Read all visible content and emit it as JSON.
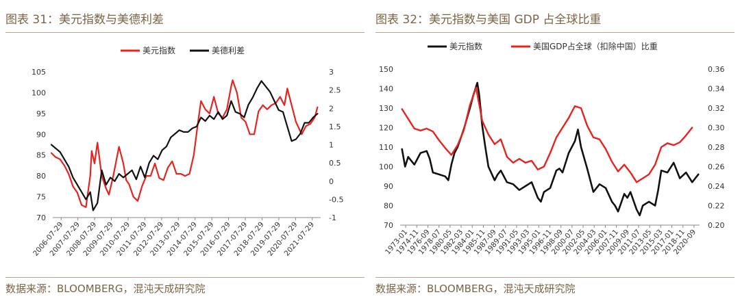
{
  "panels": [
    {
      "title": "图表 31：美元指数与美德利差",
      "source": "数据来源：BLOOMBERG，混沌天成研究院"
    },
    {
      "title": "图表 32：美元指数与美国 GDP 占全球比重",
      "source": "数据来源：BLOOMBERG，混沌天成研究院"
    }
  ],
  "chart_data": [
    {
      "type": "line",
      "title": "图表 31：美元指数与美德利差",
      "legend_position": "top-center",
      "grid": false,
      "y_left": {
        "ylim": [
          70,
          105
        ],
        "ticks": [
          "70",
          "75",
          "80",
          "85",
          "90",
          "95",
          "100",
          "105"
        ]
      },
      "y_right": {
        "ylim": [
          -1,
          3
        ],
        "ticks": [
          "-1",
          "-0.5",
          "0",
          "0.5",
          "1",
          "1.5",
          "2",
          "2.5",
          "3"
        ]
      },
      "x_ticks": [
        "2006-07-29",
        "2007-07-29",
        "2008-07-29",
        "2009-07-29",
        "2010-07-29",
        "2011-07-29",
        "2012-07-29",
        "2013-07-29",
        "2014-07-29",
        "2015-07-29",
        "2016-07-29",
        "2017-07-29",
        "2018-07-29",
        "2019-07-29",
        "2020-07-29",
        "2021-07-29"
      ],
      "series": [
        {
          "name": "美元指数",
          "axis": "left",
          "color": "#e8221f",
          "x": [
            "2006-07",
            "2006-10",
            "2007-01",
            "2007-04",
            "2007-07",
            "2007-10",
            "2008-01",
            "2008-04",
            "2008-07",
            "2008-10",
            "2008-11",
            "2009-01",
            "2009-03",
            "2009-06",
            "2009-09",
            "2009-11",
            "2010-02",
            "2010-06",
            "2010-09",
            "2010-11",
            "2011-01",
            "2011-04",
            "2011-07",
            "2011-10",
            "2012-01",
            "2012-04",
            "2012-07",
            "2012-10",
            "2013-01",
            "2013-04",
            "2013-07",
            "2013-10",
            "2014-01",
            "2014-04",
            "2014-07",
            "2014-10",
            "2015-01",
            "2015-03",
            "2015-06",
            "2015-09",
            "2015-12",
            "2016-03",
            "2016-06",
            "2016-09",
            "2016-12",
            "2017-01",
            "2017-04",
            "2017-07",
            "2017-10",
            "2018-01",
            "2018-04",
            "2018-07",
            "2018-10",
            "2019-01",
            "2019-04",
            "2019-07",
            "2019-10",
            "2020-01",
            "2020-03",
            "2020-06",
            "2020-09",
            "2021-01",
            "2021-04",
            "2021-07",
            "2021-10",
            "2021-12"
          ],
          "values": [
            85.5,
            84.5,
            84,
            82.5,
            80.5,
            77.5,
            76,
            73,
            72.5,
            80,
            86,
            83,
            88,
            80,
            77,
            75.5,
            80,
            87,
            83,
            79,
            78,
            75,
            74,
            77.5,
            80,
            80,
            83,
            79.5,
            79,
            82,
            83.5,
            80.5,
            80.5,
            80,
            80.5,
            85,
            93,
            98,
            96,
            95,
            99,
            95,
            94,
            96,
            101.5,
            103,
            100,
            94,
            93,
            90,
            90,
            95.5,
            97,
            96,
            97,
            97.5,
            99,
            97,
            101,
            97,
            93,
            90,
            92,
            92.5,
            94,
            96.5
          ]
        },
        {
          "name": "美德利差",
          "axis": "right",
          "color": "#111111",
          "x": [
            "2006-07",
            "2006-10",
            "2007-01",
            "2007-04",
            "2007-07",
            "2007-10",
            "2008-01",
            "2008-04",
            "2008-07",
            "2008-10",
            "2008-12",
            "2009-03",
            "2009-06",
            "2009-09",
            "2009-12",
            "2010-03",
            "2010-06",
            "2010-09",
            "2010-12",
            "2011-03",
            "2011-06",
            "2011-09",
            "2011-12",
            "2012-03",
            "2012-06",
            "2012-09",
            "2012-12",
            "2013-03",
            "2013-06",
            "2013-09",
            "2013-12",
            "2014-03",
            "2014-06",
            "2014-09",
            "2014-12",
            "2015-03",
            "2015-06",
            "2015-09",
            "2015-12",
            "2016-03",
            "2016-06",
            "2016-09",
            "2016-12",
            "2017-03",
            "2017-06",
            "2017-09",
            "2017-12",
            "2018-03",
            "2018-06",
            "2018-09",
            "2018-12",
            "2019-03",
            "2019-06",
            "2019-09",
            "2019-12",
            "2020-03",
            "2020-06",
            "2020-09",
            "2020-12",
            "2021-03",
            "2021-06",
            "2021-09",
            "2021-12"
          ],
          "values": [
            1.0,
            0.9,
            0.8,
            0.6,
            0.4,
            0.1,
            -0.1,
            -0.3,
            -0.5,
            -0.3,
            -0.8,
            -0.6,
            0.3,
            -0.1,
            0.1,
            0.0,
            0.2,
            0.1,
            0.2,
            0.3,
            0.05,
            0.4,
            0.1,
            0.5,
            0.7,
            0.6,
            0.85,
            0.95,
            1.2,
            1.3,
            1.4,
            1.35,
            1.35,
            1.45,
            1.5,
            1.75,
            1.65,
            1.8,
            1.7,
            1.9,
            1.7,
            1.8,
            2.2,
            1.9,
            1.85,
            1.75,
            2.1,
            2.3,
            2.55,
            2.75,
            2.6,
            2.45,
            2.2,
            1.95,
            1.9,
            1.5,
            1.1,
            1.15,
            1.3,
            1.6,
            1.6,
            1.75,
            1.85
          ]
        }
      ]
    },
    {
      "type": "line",
      "title": "图表 32：美元指数与美国 GDP 占全球比重",
      "legend_position": "top-center",
      "grid": false,
      "y_left": {
        "ylim": [
          70,
          150
        ],
        "ticks": [
          "70",
          "80",
          "90",
          "100",
          "110",
          "120",
          "130",
          "140",
          "150"
        ]
      },
      "y_right": {
        "ylim": [
          0.2,
          0.36
        ],
        "ticks": [
          "0.20",
          "0.22",
          "0.24",
          "0.26",
          "0.28",
          "0.30",
          "0.32",
          "0.34",
          "0.36"
        ]
      },
      "x_ticks": [
        "1973-01",
        "1974-11",
        "1976-09",
        "1978-07",
        "1980-05",
        "1982-03",
        "1984-01",
        "1985-11",
        "1987-09",
        "1989-07",
        "1991-05",
        "1993-03",
        "1995-01",
        "1996-11",
        "1998-09",
        "2000-07",
        "2002-05",
        "2004-03",
        "2006-01",
        "2007-11",
        "2009-09",
        "2011-07",
        "2013-05",
        "2015-03",
        "2017-01",
        "2018-11",
        "2020-09"
      ],
      "series": [
        {
          "name": "美元指数",
          "axis": "left",
          "color": "#111111",
          "x": [
            1973,
            1973.5,
            1974,
            1975,
            1976,
            1977,
            1977.5,
            1978,
            1979,
            1980,
            1980.5,
            1981,
            1981.5,
            1982,
            1983,
            1984,
            1984.5,
            1985.2,
            1985.5,
            1986,
            1986.5,
            1987,
            1988,
            1988.5,
            1989,
            1990,
            1991,
            1992,
            1993,
            1994,
            1995,
            1995.5,
            1996,
            1997,
            1998,
            1998.5,
            1999,
            2000,
            2001,
            2001.5,
            2002,
            2003,
            2004,
            2005,
            2006,
            2007,
            2007.5,
            2008,
            2009,
            2009.5,
            2010,
            2011,
            2011.5,
            2012,
            2013,
            2014,
            2014.5,
            2015,
            2016,
            2017,
            2018,
            2019,
            2020,
            2021
          ],
          "values": [
            109,
            100,
            105,
            101,
            107,
            108,
            104,
            97,
            96,
            95,
            93,
            101,
            107,
            110,
            119,
            130,
            136,
            143,
            137,
            121,
            110,
            100,
            93,
            96,
            98,
            92,
            91,
            88,
            90,
            92,
            84,
            82,
            87,
            89,
            98,
            99,
            97,
            107,
            113,
            119,
            110,
            99,
            87,
            91,
            89,
            82,
            80,
            77,
            86,
            84,
            87,
            78,
            75,
            80,
            82,
            80,
            88,
            98,
            97,
            102,
            94,
            97,
            92,
            96
          ]
        },
        {
          "name": "美国GDP占全球（扣除中国）比重",
          "axis": "right",
          "color": "#e8221f",
          "x": [
            1973,
            1974,
            1975,
            1976,
            1977,
            1978,
            1979,
            1980,
            1981,
            1982,
            1983,
            1984,
            1985,
            1986,
            1987,
            1988,
            1989,
            1990,
            1991,
            1992,
            1993,
            1994,
            1995,
            1996,
            1997,
            1998,
            1999,
            2000,
            2001,
            2002,
            2003,
            2004,
            2005,
            2006,
            2007,
            2008,
            2009,
            2010,
            2011,
            2012,
            2013,
            2014,
            2015,
            2016,
            2017,
            2018,
            2019,
            2020
          ],
          "values": [
            0.319,
            0.309,
            0.299,
            0.297,
            0.299,
            0.296,
            0.287,
            0.279,
            0.272,
            0.282,
            0.297,
            0.323,
            0.341,
            0.307,
            0.293,
            0.283,
            0.288,
            0.27,
            0.264,
            0.268,
            0.264,
            0.266,
            0.257,
            0.26,
            0.274,
            0.29,
            0.3,
            0.31,
            0.322,
            0.32,
            0.302,
            0.29,
            0.288,
            0.278,
            0.265,
            0.255,
            0.262,
            0.254,
            0.244,
            0.248,
            0.252,
            0.262,
            0.28,
            0.284,
            0.282,
            0.285,
            0.292,
            0.3
          ]
        }
      ]
    }
  ]
}
